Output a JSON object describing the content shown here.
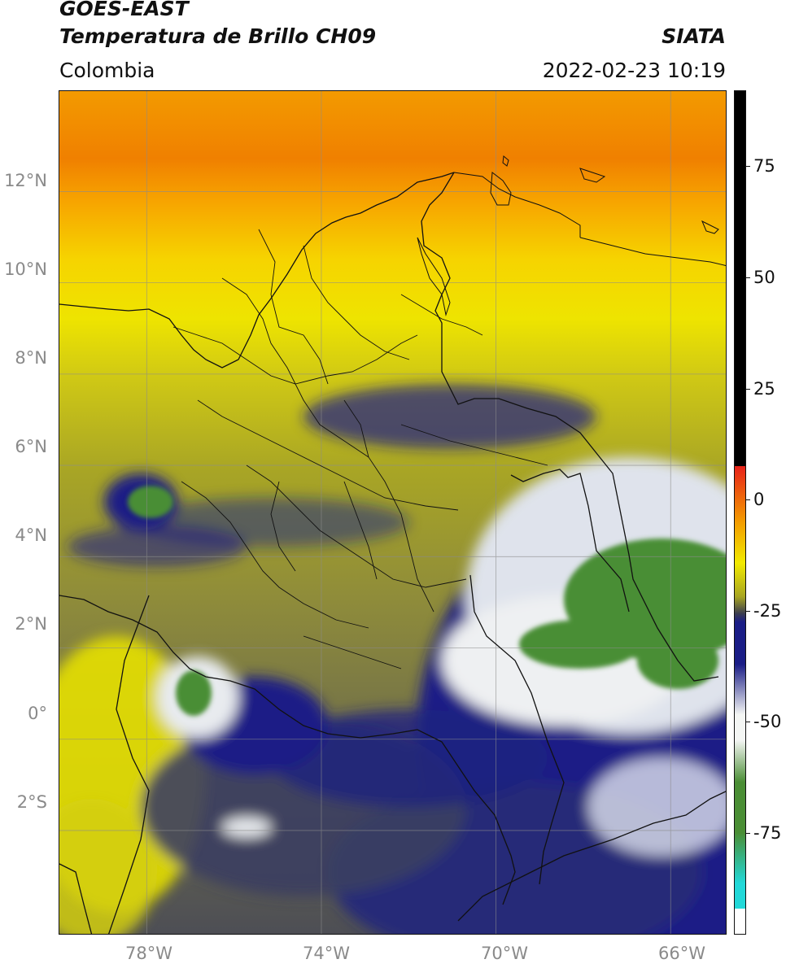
{
  "header": {
    "title_line1": "GOES-EAST",
    "title_line2": "Temperatura de Brillo CH09",
    "region": "Colombia",
    "organization": "SIATA",
    "datetime": "2022-02-23 10:19"
  },
  "map": {
    "lon_range": [
      -80.0,
      -64.7
    ],
    "lat_range": [
      -4.3,
      14.2
    ],
    "lat_ticks": [
      "12°N",
      "10°N",
      "8°N",
      "6°N",
      "4°N",
      "2°N",
      "0°",
      "2°S"
    ],
    "lat_values": [
      12,
      10,
      8,
      6,
      4,
      2,
      0,
      -2
    ],
    "lon_ticks": [
      "78°W",
      "74°W",
      "70°W",
      "66°W"
    ],
    "lon_values": [
      -78,
      -74,
      -70,
      -66
    ],
    "gridlines": true
  },
  "colorbar": {
    "labels": [
      "75",
      "50",
      "25",
      "0",
      "-25",
      "-50",
      "-75"
    ],
    "values": [
      75,
      50,
      25,
      0,
      -25,
      -50,
      -75
    ],
    "range": [
      -100,
      90
    ],
    "colors": {
      "black": "#000000",
      "red": "#e8221a",
      "orange": "#f39a00",
      "yellow": "#f2ea00",
      "olive": "#a7a521",
      "dark_gray": "#3b3d4f",
      "navy": "#1a1d86",
      "white": "#f4f6f4",
      "green": "#4a8e35",
      "cyan": "#22d8d8"
    }
  }
}
